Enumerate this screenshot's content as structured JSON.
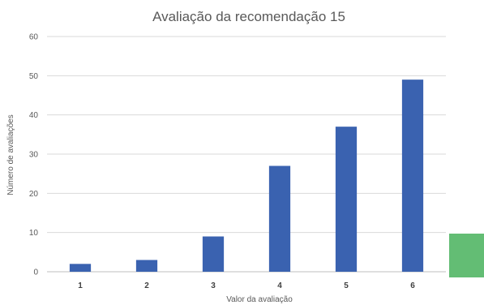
{
  "chart_data": {
    "type": "bar",
    "title": "Avaliação da recomendação 15",
    "xlabel": "Valor da avaliação",
    "ylabel": "Número de avaliações",
    "categories": [
      "1",
      "2",
      "3",
      "4",
      "5",
      "6"
    ],
    "values": [
      2,
      3,
      9,
      27,
      37,
      49
    ],
    "ylim": [
      0,
      60
    ],
    "yticks": [
      0,
      10,
      20,
      30,
      40,
      50,
      60
    ],
    "grid": true,
    "bar_color": "#3a62b0"
  },
  "overlay": {
    "color": "#63bd74"
  }
}
